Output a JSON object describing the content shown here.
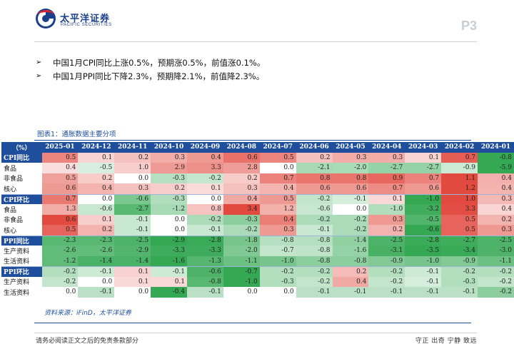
{
  "brand": {
    "name": "太平洋证券",
    "name_en": "PACIFIC SECURITIES",
    "color": "#1c3f8c",
    "accent": "#d8262f"
  },
  "page_number": "P3",
  "bullets": [
    "中国1月CPI同比上涨0.5%，预期涨0.5%，前值涨0.1%。",
    "中国1月PPI同比下降2.3%，预期降2.1%，前值降2.3%。"
  ],
  "figure_title": "图表1：通胀数据主要分项",
  "table": {
    "corner": "（%）",
    "columns": [
      "2025-01",
      "2024-12",
      "2024-11",
      "2024-10",
      "2024-09",
      "2024-08",
      "2024-07",
      "2024-06",
      "2024-05",
      "2024-04",
      "2024-03",
      "2024-02",
      "2024-01"
    ],
    "rows": [
      {
        "label": "CPI同比",
        "section": true,
        "values": [
          0.5,
          0.1,
          0.2,
          0.3,
          0.4,
          0.6,
          0.5,
          0.2,
          0.3,
          0.3,
          0.1,
          0.7,
          -0.8
        ]
      },
      {
        "label": "食品",
        "section": false,
        "values": [
          0.4,
          -0.5,
          1.0,
          2.9,
          3.3,
          2.8,
          0.0,
          -2.1,
          -2.0,
          -2.7,
          -2.7,
          -0.9,
          -5.9
        ]
      },
      {
        "label": "非食品",
        "section": false,
        "values": [
          0.5,
          0.2,
          0.0,
          -0.3,
          -0.2,
          0.2,
          0.7,
          0.8,
          0.8,
          0.9,
          0.7,
          1.1,
          0.4
        ]
      },
      {
        "label": "核心",
        "section": false,
        "values": [
          0.6,
          0.4,
          0.3,
          0.2,
          0.1,
          0.3,
          0.4,
          0.6,
          0.6,
          0.7,
          0.6,
          1.2,
          0.4
        ]
      },
      {
        "label": "CPI环比",
        "section": true,
        "values": [
          0.7,
          0.0,
          -0.6,
          -0.3,
          0.0,
          0.4,
          0.5,
          -0.2,
          -0.1,
          0.1,
          -1.0,
          1.0,
          0.3
        ]
      },
      {
        "label": "食品",
        "section": false,
        "values": [
          1.3,
          -0.6,
          -2.7,
          -1.2,
          0.8,
          3.4,
          1.2,
          -0.6,
          0.0,
          -1.0,
          -3.2,
          3.3,
          0.4
        ]
      },
      {
        "label": "非食品",
        "section": false,
        "values": [
          0.6,
          0.1,
          -0.1,
          0.0,
          -0.2,
          -0.3,
          0.4,
          -0.2,
          -0.2,
          0.3,
          -0.5,
          0.5,
          0.2
        ]
      },
      {
        "label": "核心",
        "section": false,
        "values": [
          0.5,
          0.2,
          -0.1,
          0.0,
          -0.1,
          -0.2,
          0.3,
          -0.1,
          -0.2,
          0.2,
          -0.6,
          0.5,
          0.3
        ]
      },
      {
        "label": "PPI同比",
        "section": true,
        "values": [
          -2.3,
          -2.3,
          -2.5,
          -2.9,
          -2.8,
          -1.8,
          -0.8,
          -0.8,
          -1.4,
          -2.5,
          -2.8,
          -2.7,
          -2.5
        ]
      },
      {
        "label": "生产资料",
        "section": false,
        "values": [
          -2.6,
          -2.6,
          -2.9,
          -3.3,
          -3.3,
          -2.0,
          -0.7,
          -0.8,
          -1.6,
          -3.1,
          -3.5,
          -3.4,
          -3.0
        ]
      },
      {
        "label": "生活资料",
        "section": false,
        "values": [
          -1.2,
          -1.4,
          -1.4,
          -1.6,
          -1.3,
          -1.1,
          -1.0,
          -0.8,
          -0.8,
          -0.9,
          -1.0,
          -0.9,
          -1.1
        ]
      },
      {
        "label": "PPI环比",
        "section": true,
        "values": [
          -0.2,
          -0.1,
          0.1,
          -0.1,
          -0.6,
          -0.7,
          -0.2,
          -0.2,
          0.2,
          -0.2,
          -0.1,
          -0.2,
          -0.2
        ]
      },
      {
        "label": "生产资料",
        "section": false,
        "values": [
          -0.2,
          0.0,
          0.1,
          0.1,
          -0.8,
          -1.0,
          -0.3,
          -0.2,
          0.4,
          -0.2,
          -0.1,
          -0.3,
          -0.2
        ]
      },
      {
        "label": "生活资料",
        "section": false,
        "values": [
          0.0,
          -0.1,
          0.0,
          -0.4,
          -0.1,
          0.0,
          0.0,
          -0.1,
          -0.1,
          -0.1,
          -0.1,
          -0.1,
          -0.2
        ]
      }
    ]
  },
  "colors": {
    "header_bg": "#1f4e9c",
    "positive": "#e2493f",
    "negative": "#34a853",
    "neutral": "#ffffff"
  },
  "source_note": "资料来源：iFinD，太平洋证券",
  "footer": {
    "left": "请务必阅读正文之后的免责条款部分",
    "right": "守正 出奇 宁静 致远"
  }
}
